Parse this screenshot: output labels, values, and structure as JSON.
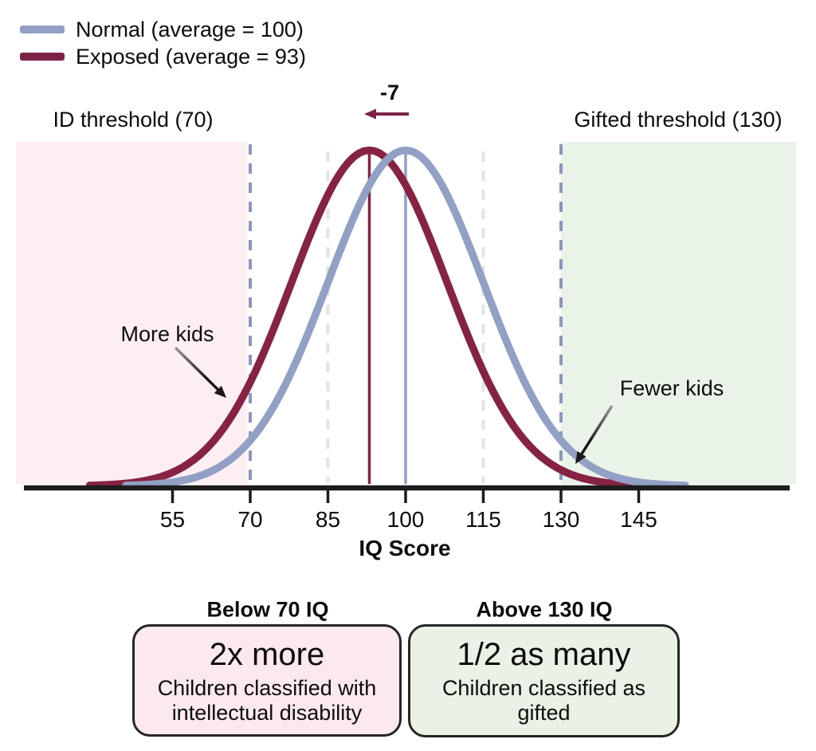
{
  "legend": {
    "items": [
      {
        "label": "Normal (average = 100)",
        "color": "#91a0c4"
      },
      {
        "label": "Exposed (average = 93)",
        "color": "#7d2347"
      }
    ]
  },
  "annotations": {
    "id_threshold_label": "ID threshold (70)",
    "gifted_threshold_label": "Gifted threshold (130)",
    "shift_label": "-7",
    "more_kids_label": "More kids",
    "fewer_kids_label": "Fewer kids"
  },
  "axis": {
    "label": "IQ Score",
    "ticks": [
      55,
      70,
      85,
      100,
      115,
      130,
      145
    ]
  },
  "chart_data": {
    "type": "line",
    "title": "",
    "xlabel": "IQ Score",
    "x_ticks": [
      55,
      70,
      85,
      100,
      115,
      130,
      145
    ],
    "x_range": [
      40,
      158
    ],
    "series": [
      {
        "name": "Normal (average = 100)",
        "distribution": "normal",
        "mean": 100,
        "sd": 15,
        "color": "#91a0c4"
      },
      {
        "name": "Exposed (average = 93)",
        "distribution": "normal",
        "mean": 93,
        "sd": 15,
        "color": "#862345"
      }
    ],
    "mean_lines": [
      {
        "x": 100,
        "color": "#91a0c4"
      },
      {
        "x": 93,
        "color": "#862345"
      }
    ],
    "thresholds": [
      {
        "label": "ID threshold (70)",
        "value": 70,
        "region": "below",
        "region_color": "#fdeef2",
        "line_color": "#8b96c0"
      },
      {
        "label": "Gifted threshold (130)",
        "value": 130,
        "region": "above",
        "region_color": "#eaf3e8",
        "line_color": "#8b96c0"
      }
    ],
    "reference_lines": [
      {
        "x": 85,
        "style": "dashed",
        "color": "#e3e3e4"
      },
      {
        "x": 115,
        "style": "dashed",
        "color": "#e3e3e4"
      }
    ],
    "mean_shift": {
      "label": "-7",
      "from": 100,
      "to": 93,
      "arrow_color": "#7d2347"
    },
    "annotations": [
      {
        "text": "More kids",
        "points_to": "left tail of exposed curve below IQ 70"
      },
      {
        "text": "Fewer kids",
        "points_to": "right tail of exposed curve above IQ 130"
      }
    ],
    "legend_position": "top-left",
    "grid": false
  },
  "cards": [
    {
      "heading": "Below 70 IQ",
      "value": "2x more",
      "description": "Children classified with\nintellectual disability",
      "fill": "#fce9ef"
    },
    {
      "heading": "Above 130 IQ",
      "value": "1/2 as many",
      "description": "Children classified as\ngifted",
      "fill": "#e9f2e5"
    }
  ]
}
